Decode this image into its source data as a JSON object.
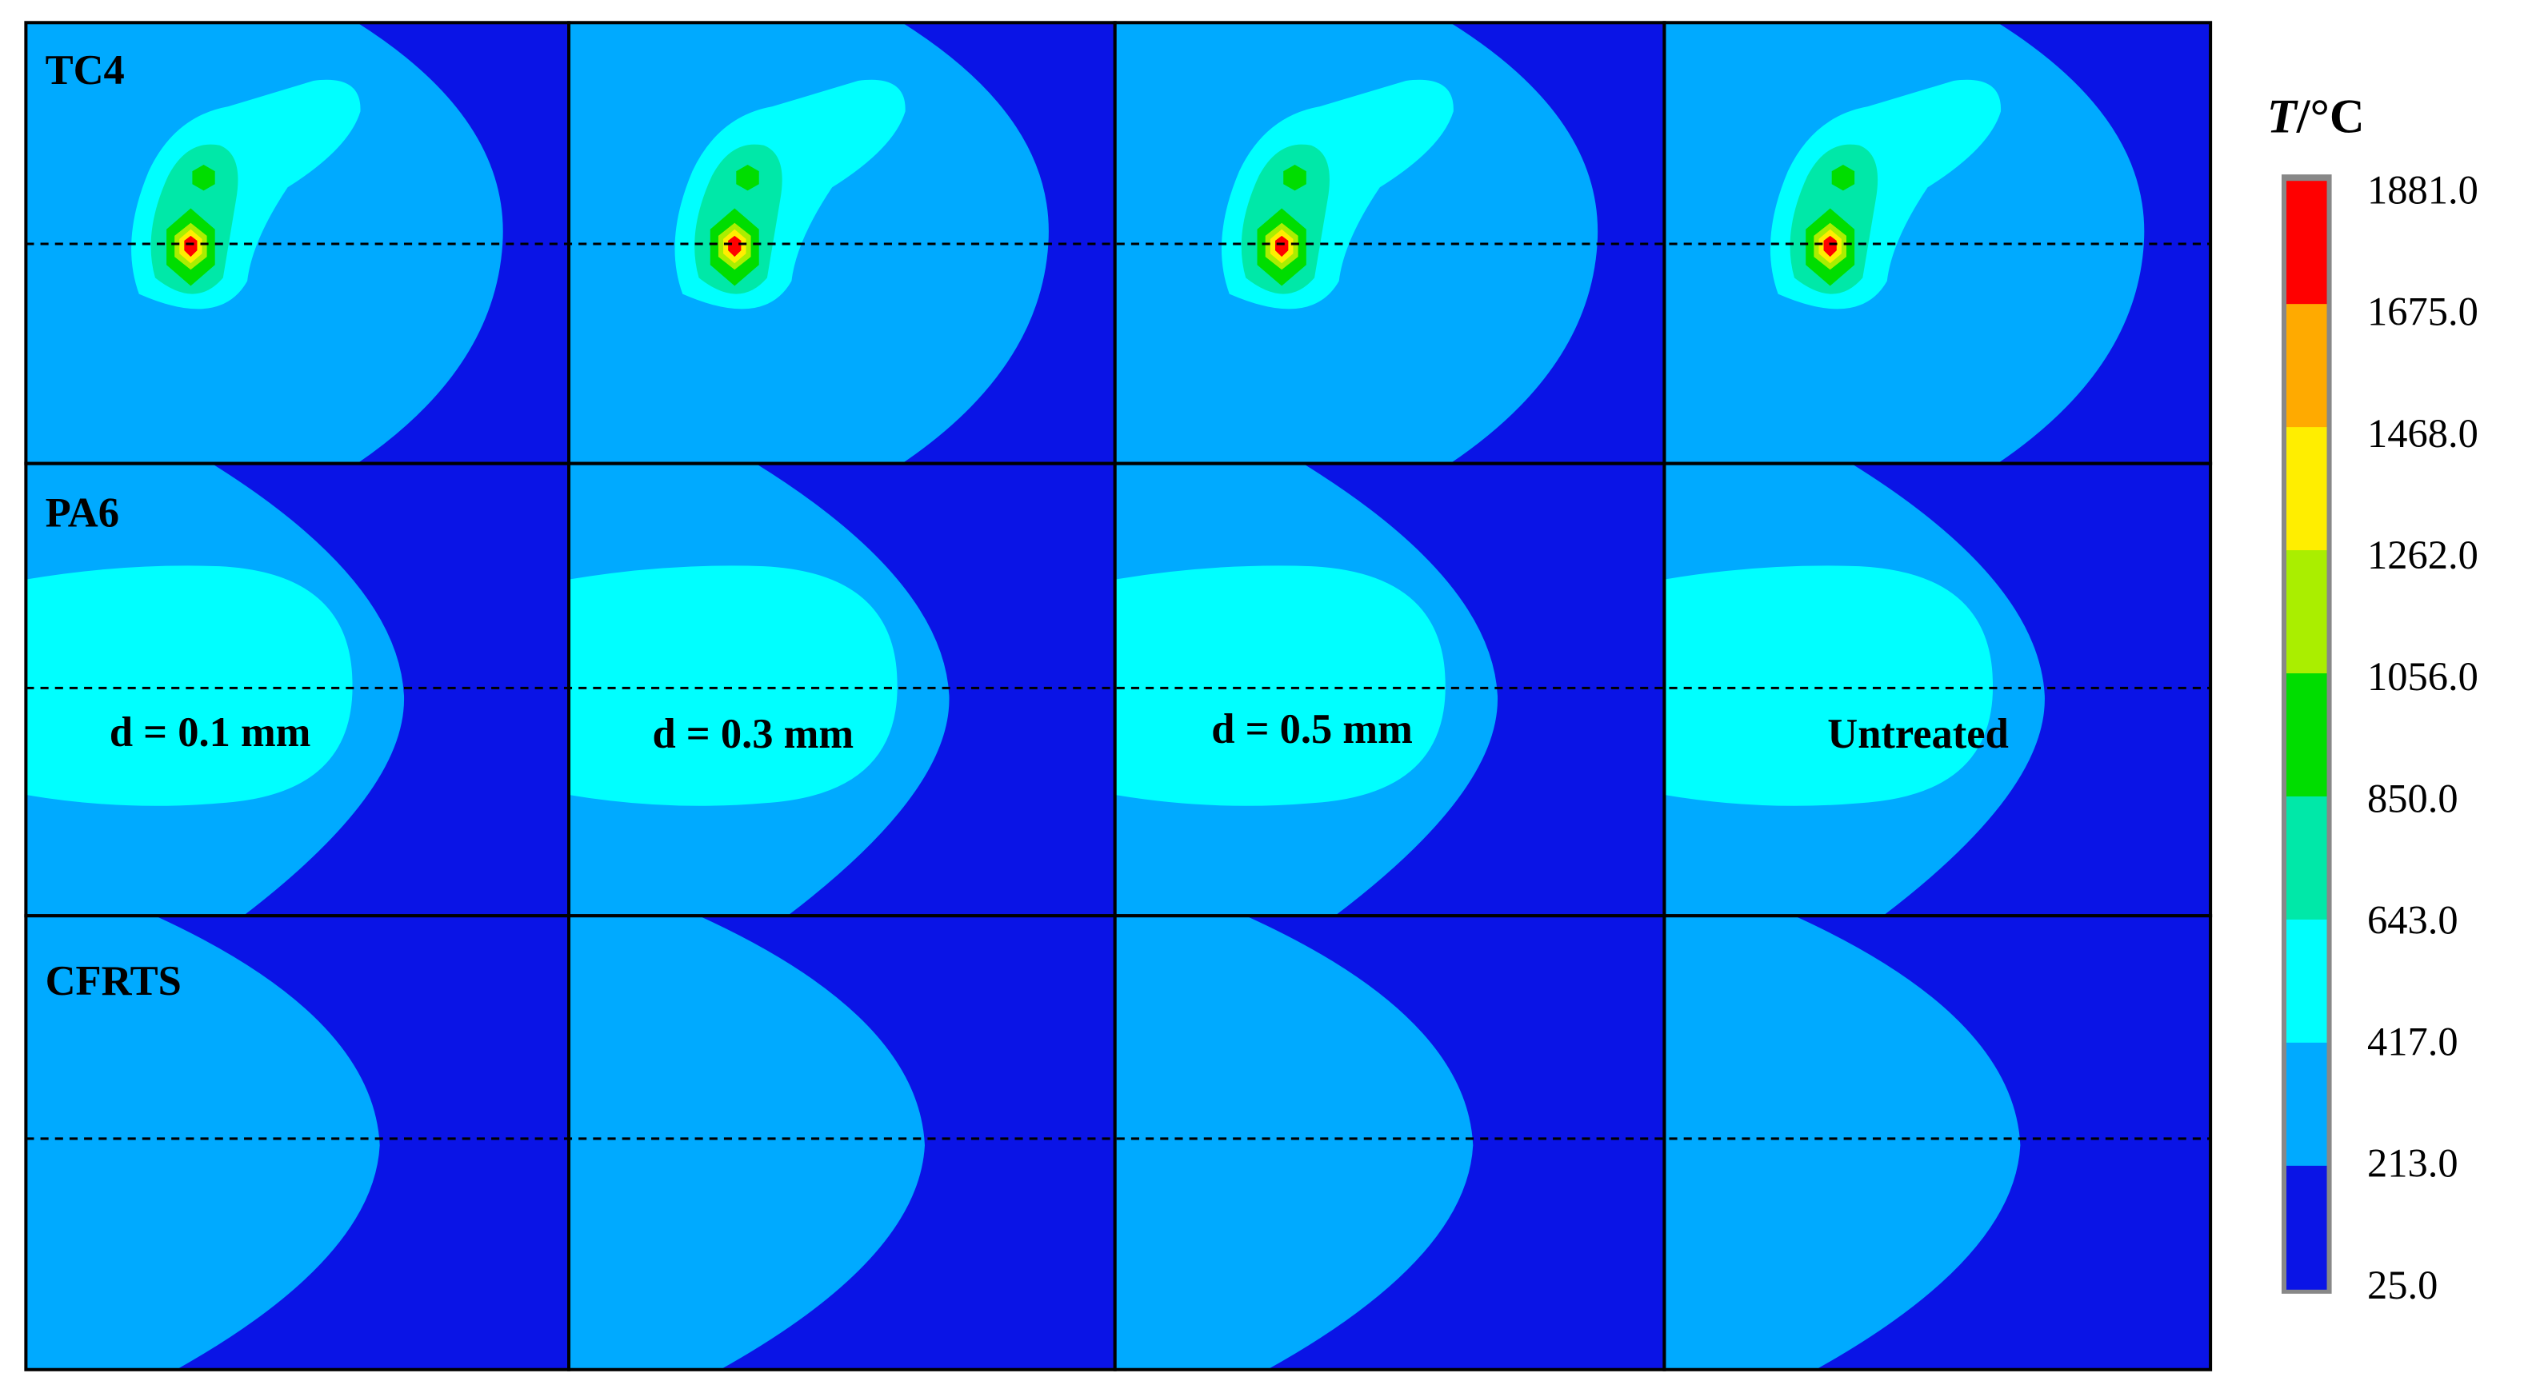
{
  "rows": [
    "TC4",
    "PA6",
    "CFRTS"
  ],
  "columns": [
    "d = 0.1 mm",
    "d = 0.3 mm",
    "d = 0.5 mm",
    "Untreated"
  ],
  "colorbar": {
    "title": {
      "symbol": "T",
      "unit": "/°C"
    },
    "labels": [
      "1881.0",
      "1675.0",
      "1468.0",
      "1262.0",
      "1056.0",
      "850.0",
      "643.0",
      "417.0",
      "213.0",
      "25.0"
    ],
    "colors": [
      "#ff0000",
      "#ffaa00",
      "#ffee00",
      "#aaee00",
      "#00dd00",
      "#00e8a8",
      "#00ffff",
      "#00aaff",
      "#0a14e6"
    ]
  }
}
